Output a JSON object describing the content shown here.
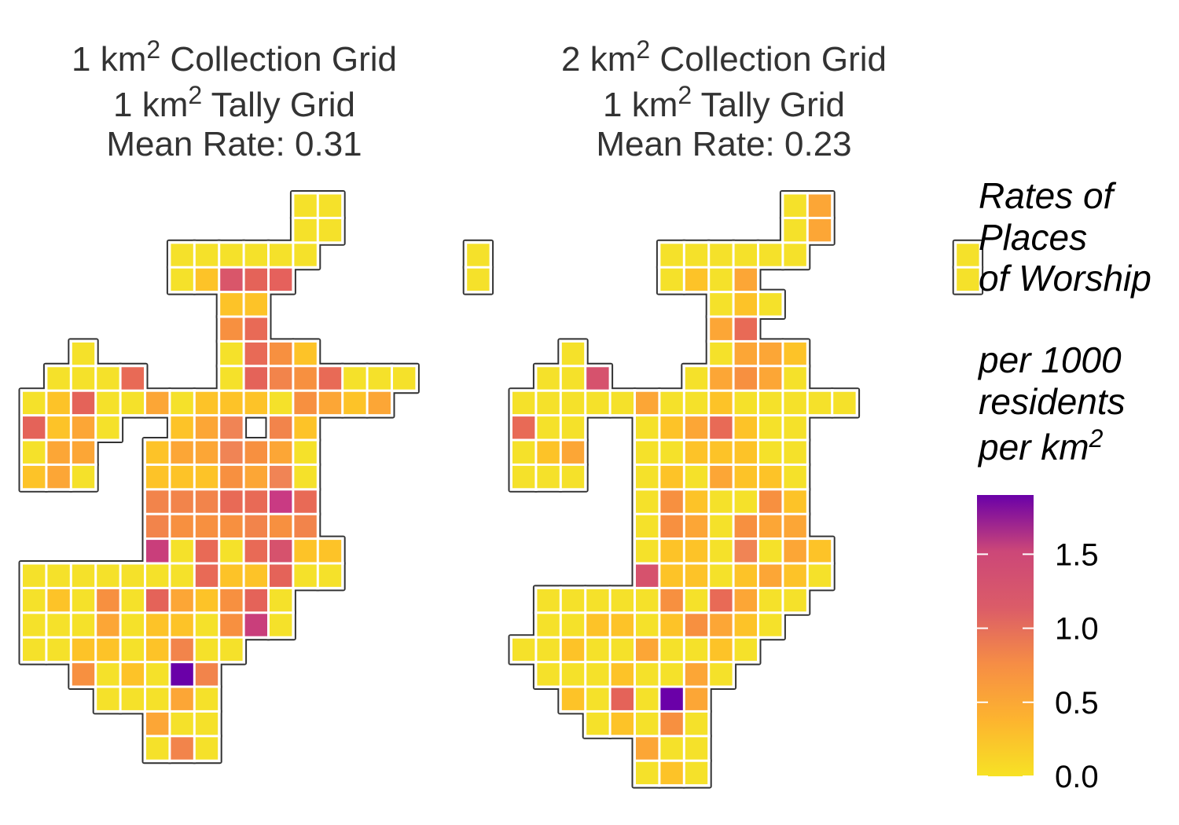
{
  "panels": [
    {
      "title_lines": [
        {
          "pre": "1 km",
          "sup": "2",
          "post": " Collection Grid"
        },
        {
          "pre": "1 km",
          "sup": "2",
          "post": " Tally Grid"
        },
        {
          "pre": "Mean Rate: 0.31",
          "sup": "",
          "post": ""
        }
      ],
      "grid_rows": [
        "...........PP.....",
        "...........PP.....",
        "......PPPPPP......P",
        "......PALHE.......P",
        "........AA....... ",
        "........CG........",
        "..P.....PGCA......",
        ".PPPG...PHFCGPPP..",
        "PAHPPBPAAAPCBAB...",
        "HABP..ABD FA......",
        "PBB..ABBDCBP......",
        "ABP..AAACBDP......",
        ".....FFFGGKG......",
        ".....FCCCFCF......",
        ".....JPGPGIAA.....",
        "PPPPPPPGAAHPP.....",
        "PAPCPHBACHP.......",
        "PPPBPAAPCJP.......",
        "PPAAPAFPP.........",
        "..CPAPNF..........",
        "...PPPBP..........",
        ".....BPP..........",
        ".....PFP.........."
      ]
    },
    {
      "title_lines": [
        {
          "pre": "2 km",
          "sup": "2",
          "post": " Collection Grid"
        },
        {
          "pre": "1 km",
          "sup": "2",
          "post": " Tally Grid"
        },
        {
          "pre": "Mean Rate: 0.23",
          "sup": "",
          "post": ""
        }
      ],
      "grid_rows": [
        "...........PB.....",
        "...........PB.....",
        "......PPPPPP......P",
        "......PAPB........P",
        "........PAP.......",
        "........BG........",
        "..P.....PBBA......",
        ".PPI...PBCBP......",
        "PPPPPBPPAPPPPP....",
        "GPP..PABGAPP......",
        "PAB..PPAAAPP......",
        "PPP..PAPBAAP......",
        ".....PCAPPCA......",
        ".....PCBPCBB......",
        ".....PAAPDPBA.....",
        ".....IAAPABAP.....",
        ".PPPPPCPGBPP......",
        ".PPAAPACBAP.......",
        "PPAPPBPPAP........",
        ".PPPAPPBP.........",
        "..APHPNB..........",
        "...PAPCP..........",
        ".....BPP..........",
        ".....PAP.........."
      ]
    }
  ],
  "legend": {
    "title_lines": [
      "Rates of",
      "Places",
      "of Worship",
      "",
      "per 1000",
      "residents"
    ],
    "unit_line": {
      "pre": "per km",
      "sup": "2"
    },
    "ticks": [
      {
        "value": 0.0,
        "label": "0.0"
      },
      {
        "value": 0.5,
        "label": "0.5"
      },
      {
        "value": 1.0,
        "label": "1.0"
      },
      {
        "value": 1.5,
        "label": "1.5"
      }
    ],
    "max": 1.9,
    "colors": [
      "#f7e225",
      "#fdb42f",
      "#f68d45",
      "#db5c68",
      "#cc4778",
      "#6a00a8"
    ]
  },
  "palette": {
    "P": "#f5e12a",
    "A": "#fdc328",
    "B": "#fca636",
    "C": "#f79040",
    "D": "#f08455",
    "E": "#e5615c",
    "F": "#f2844b",
    "G": "#e86a56",
    "H": "#e46359",
    "I": "#d6526d",
    "J": "#c93e7b",
    "K": "#c93a83",
    "L": "#d9566a",
    "N": "#6a00a8"
  }
}
